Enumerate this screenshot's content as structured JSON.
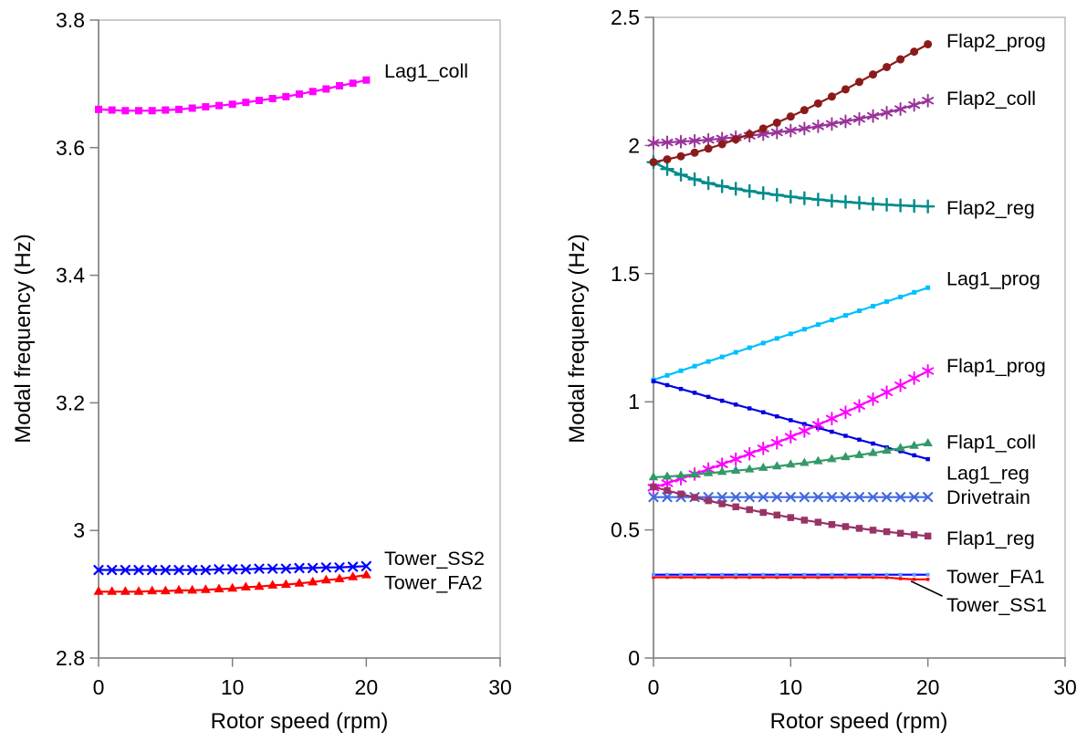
{
  "figure": {
    "background": "#ffffff",
    "axis_color": "#808080",
    "frame_color": "#b6b6b6",
    "text_color": "#000000"
  },
  "chart_data": [
    {
      "name": "left-chart",
      "type": "line",
      "xlabel": "Rotor speed (rpm)",
      "ylabel": "Modal frequency (Hz)",
      "xlim": [
        0,
        30
      ],
      "ylim": [
        2.8,
        3.8
      ],
      "grid": false,
      "legend_position": "right-of-line-end",
      "xticks": [
        {
          "v": 0,
          "label": "0"
        },
        {
          "v": 10,
          "label": "10"
        },
        {
          "v": 20,
          "label": "20"
        },
        {
          "v": 30,
          "label": "30"
        }
      ],
      "yticks": [
        {
          "v": 3.8,
          "label": "3.8"
        },
        {
          "v": 3.6,
          "label": "3.6"
        },
        {
          "v": 3.4,
          "label": "3.4"
        },
        {
          "v": 3.2,
          "label": "3.2"
        },
        {
          "v": 3.0,
          "label": "3"
        },
        {
          "v": 2.8,
          "label": "2.8"
        }
      ],
      "x": [
        0,
        1,
        2,
        3,
        4,
        5,
        6,
        7,
        8,
        9,
        10,
        11,
        12,
        13,
        14,
        15,
        16,
        17,
        18,
        19,
        20
      ],
      "series": [
        {
          "name": "Lag1_coll",
          "label": "Lag1_coll",
          "color": "#FF00FF",
          "marker": "square",
          "marker_size": 8,
          "label_y": 3.72,
          "values": [
            3.66,
            3.659,
            3.658,
            3.658,
            3.658,
            3.659,
            3.66,
            3.662,
            3.664,
            3.666,
            3.668,
            3.671,
            3.674,
            3.677,
            3.68,
            3.684,
            3.688,
            3.692,
            3.697,
            3.701,
            3.706
          ]
        },
        {
          "name": "Tower_SS2",
          "label": "Tower_SS2",
          "color": "#0000FF",
          "marker": "x",
          "marker_size": 9,
          "label_y": 2.956,
          "values": [
            2.938,
            2.938,
            2.938,
            2.938,
            2.938,
            2.938,
            2.938,
            2.938,
            2.938,
            2.939,
            2.939,
            2.939,
            2.94,
            2.94,
            2.94,
            2.941,
            2.941,
            2.942,
            2.942,
            2.943,
            2.944
          ]
        },
        {
          "name": "Tower_FA2",
          "label": "Tower_FA2",
          "color": "#FF0000",
          "marker": "triangle",
          "marker_size": 9,
          "label_y": 2.918,
          "values": [
            2.904,
            2.904,
            2.904,
            2.904,
            2.905,
            2.905,
            2.906,
            2.906,
            2.907,
            2.908,
            2.909,
            2.911,
            2.912,
            2.914,
            2.915,
            2.917,
            2.919,
            2.922,
            2.924,
            2.927,
            2.93
          ]
        }
      ]
    },
    {
      "name": "right-chart",
      "type": "line",
      "xlabel": "Rotor speed (rpm)",
      "ylabel": "Modal frequency (Hz)",
      "xlim": [
        0,
        30
      ],
      "ylim": [
        0,
        2.5
      ],
      "grid": false,
      "legend_position": "right-of-line-end",
      "xticks": [
        {
          "v": 0,
          "label": "0"
        },
        {
          "v": 10,
          "label": "10"
        },
        {
          "v": 20,
          "label": "20"
        },
        {
          "v": 30,
          "label": "30"
        }
      ],
      "yticks": [
        {
          "v": 2.5,
          "label": "2.5"
        },
        {
          "v": 2.0,
          "label": "2"
        },
        {
          "v": 1.5,
          "label": "1.5"
        },
        {
          "v": 1.0,
          "label": "1"
        },
        {
          "v": 0.5,
          "label": "0.5"
        },
        {
          "v": 0.0,
          "label": "0"
        }
      ],
      "x": [
        0,
        1,
        2,
        3,
        4,
        5,
        6,
        7,
        8,
        9,
        10,
        11,
        12,
        13,
        14,
        15,
        16,
        17,
        18,
        19,
        20
      ],
      "series": [
        {
          "name": "Flap2_coll",
          "label": "Flap2_coll",
          "color": "#993399",
          "marker": "asterisk",
          "marker_size": 11,
          "label_y": 2.183,
          "values": [
            2.01,
            2.012,
            2.015,
            2.018,
            2.022,
            2.027,
            2.032,
            2.038,
            2.044,
            2.051,
            2.058,
            2.066,
            2.075,
            2.084,
            2.094,
            2.104,
            2.115,
            2.128,
            2.142,
            2.158,
            2.175
          ]
        },
        {
          "name": "Flap2_reg",
          "label": "Flap2_reg",
          "color": "#008B8B",
          "marker": "plus",
          "marker_size": 11,
          "width": 2.6,
          "label_y": 1.755,
          "values": [
            1.935,
            1.908,
            1.886,
            1.868,
            1.853,
            1.841,
            1.831,
            1.822,
            1.814,
            1.807,
            1.8,
            1.794,
            1.789,
            1.784,
            1.78,
            1.776,
            1.772,
            1.769,
            1.766,
            1.764,
            1.762
          ]
        },
        {
          "name": "Flap2_prog",
          "label": "Flap2_prog",
          "color": "#8B1A1A",
          "marker": "circle",
          "marker_size": 9,
          "label_y": 2.407,
          "values": [
            1.935,
            1.946,
            1.958,
            1.972,
            1.988,
            2.005,
            2.024,
            2.044,
            2.066,
            2.089,
            2.113,
            2.138,
            2.164,
            2.191,
            2.219,
            2.248,
            2.277,
            2.306,
            2.336,
            2.366,
            2.395
          ]
        },
        {
          "name": "Lag1_prog",
          "label": "Lag1_prog",
          "color": "#00BFFF",
          "marker": "square",
          "marker_size": 5,
          "label_y": 1.48,
          "values": [
            1.085,
            1.103,
            1.121,
            1.139,
            1.157,
            1.175,
            1.193,
            1.211,
            1.229,
            1.247,
            1.265,
            1.283,
            1.301,
            1.319,
            1.337,
            1.355,
            1.373,
            1.391,
            1.409,
            1.427,
            1.445
          ]
        },
        {
          "name": "Lag1_reg",
          "label": "Lag1_reg",
          "color": "#0000E0",
          "marker": "square",
          "marker_size": 4.5,
          "label_y": 0.722,
          "values": [
            1.08,
            1.065,
            1.05,
            1.035,
            1.019,
            1.004,
            0.989,
            0.974,
            0.959,
            0.943,
            0.928,
            0.913,
            0.898,
            0.883,
            0.867,
            0.852,
            0.837,
            0.822,
            0.807,
            0.791,
            0.776
          ]
        },
        {
          "name": "Flap1_prog",
          "label": "Flap1_prog",
          "color": "#FF00FF",
          "marker": "asterisk",
          "marker_size": 11,
          "label_y": 1.14,
          "values": [
            0.665,
            0.682,
            0.7,
            0.718,
            0.737,
            0.756,
            0.776,
            0.797,
            0.818,
            0.84,
            0.863,
            0.886,
            0.91,
            0.934,
            0.959,
            0.984,
            1.01,
            1.037,
            1.064,
            1.092,
            1.12
          ]
        },
        {
          "name": "Drivetrain",
          "label": "Drivetrain",
          "color": "#4169E1",
          "marker": "x",
          "marker_size": 9,
          "label_y": 0.627,
          "values": [
            0.628,
            0.628,
            0.628,
            0.628,
            0.628,
            0.628,
            0.628,
            0.628,
            0.628,
            0.628,
            0.628,
            0.628,
            0.628,
            0.628,
            0.628,
            0.628,
            0.628,
            0.628,
            0.628,
            0.628,
            0.628
          ]
        },
        {
          "name": "Flap1_reg",
          "label": "Flap1_reg",
          "color": "#993366",
          "marker": "square",
          "marker_size": 7.5,
          "label_y": 0.467,
          "values": [
            0.668,
            0.654,
            0.64,
            0.627,
            0.614,
            0.602,
            0.59,
            0.579,
            0.568,
            0.558,
            0.548,
            0.538,
            0.53,
            0.521,
            0.513,
            0.506,
            0.499,
            0.493,
            0.487,
            0.481,
            0.476
          ]
        },
        {
          "name": "Flap1_coll",
          "label": "Flap1_coll",
          "color": "#339966",
          "marker": "triangle",
          "marker_size": 8.5,
          "label_y": 0.842,
          "values": [
            0.705,
            0.708,
            0.712,
            0.716,
            0.721,
            0.726,
            0.731,
            0.736,
            0.742,
            0.748,
            0.755,
            0.761,
            0.768,
            0.776,
            0.784,
            0.792,
            0.8,
            0.809,
            0.819,
            0.828,
            0.838
          ]
        },
        {
          "name": "Tower_SS1",
          "label": "Tower_SS1",
          "color": "#FF0000",
          "marker": "square",
          "marker_size": 3.5,
          "label_y": 0.207,
          "leader": {
            "x": 18.8,
            "y": 0.306
          },
          "values": [
            0.315,
            0.315,
            0.315,
            0.315,
            0.315,
            0.315,
            0.315,
            0.315,
            0.315,
            0.315,
            0.315,
            0.315,
            0.315,
            0.315,
            0.315,
            0.315,
            0.315,
            0.314,
            0.31,
            0.307,
            0.307
          ]
        },
        {
          "name": "Tower_FA1",
          "label": "Tower_FA1",
          "color": "#0000FF",
          "marker": "square",
          "marker_size": 4,
          "marker_color": "#6699FF",
          "label_y": 0.317,
          "values": [
            0.325,
            0.325,
            0.325,
            0.325,
            0.325,
            0.325,
            0.325,
            0.325,
            0.325,
            0.325,
            0.325,
            0.325,
            0.325,
            0.325,
            0.325,
            0.325,
            0.325,
            0.325,
            0.325,
            0.325,
            0.325
          ]
        }
      ]
    }
  ]
}
